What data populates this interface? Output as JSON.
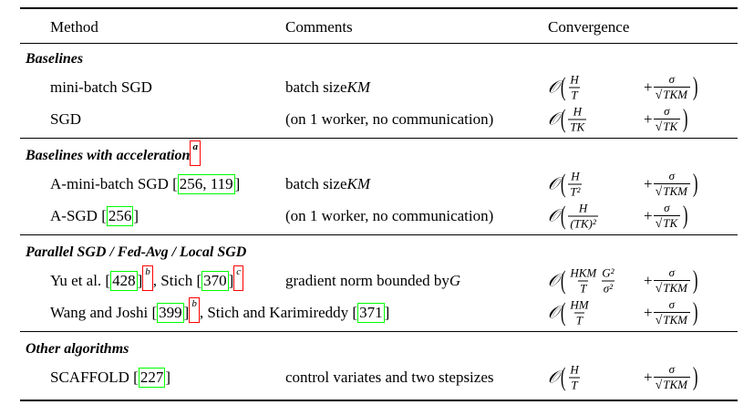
{
  "header": [
    "Method",
    "Comments",
    "Convergence"
  ],
  "symbols": {
    "O": "𝒪",
    "open": "(",
    "close": ")",
    "plus": "+",
    "root": "√"
  },
  "sections": [
    {
      "title": [
        {
          "t": "Baselines"
        }
      ],
      "rows": [
        {
          "method": [
            {
              "t": "mini-batch SGD"
            }
          ],
          "comment": [
            {
              "t": "batch size "
            },
            {
              "t": "KM",
              "math": true
            }
          ],
          "conv": {
            "fracs": [
              {
                "n": "H",
                "d": "T"
              }
            ],
            "sq": {
              "n": "σ",
              "d": "TKM"
            }
          }
        },
        {
          "method": [
            {
              "t": "SGD"
            }
          ],
          "comment": [
            {
              "t": "(on 1 worker, no communication)"
            }
          ],
          "conv": {
            "fracs": [
              {
                "n": "H",
                "d": "TK"
              }
            ],
            "sq": {
              "n": "σ",
              "d": "TK"
            }
          }
        }
      ]
    },
    {
      "title": [
        {
          "t": "Baselines with acceleration"
        },
        {
          "t": "a",
          "sup": true
        }
      ],
      "rows": [
        {
          "method": [
            {
              "t": "A-mini-batch SGD ["
            },
            {
              "t": "256, 119",
              "cite": true
            },
            {
              "t": "]"
            }
          ],
          "comment": [
            {
              "t": "batch size "
            },
            {
              "t": "KM",
              "math": true
            }
          ],
          "conv": {
            "fracs": [
              {
                "n": "H",
                "d": "T²"
              }
            ],
            "sq": {
              "n": "σ",
              "d": "TKM"
            }
          }
        },
        {
          "method": [
            {
              "t": "A-SGD ["
            },
            {
              "t": "256",
              "cite": true
            },
            {
              "t": "]"
            }
          ],
          "comment": [
            {
              "t": "(on 1 worker, no communication)"
            }
          ],
          "conv": {
            "fracs": [
              {
                "n": "H",
                "d": "(TK)²"
              }
            ],
            "sq": {
              "n": "σ",
              "d": "TK"
            }
          }
        }
      ]
    },
    {
      "title": [
        {
          "t": "Parallel SGD / Fed-Avg / Local SGD"
        }
      ],
      "rows": [
        {
          "method": [
            {
              "t": "Yu et al. ["
            },
            {
              "t": "428",
              "cite": true
            },
            {
              "t": "]"
            },
            {
              "t": "b",
              "sup": true
            },
            {
              "t": ", Stich ["
            },
            {
              "t": "370",
              "cite": true
            },
            {
              "t": "]"
            },
            {
              "t": "c",
              "sup": true
            }
          ],
          "comment": [
            {
              "t": "gradient norm bounded by "
            },
            {
              "t": "G",
              "math": true
            }
          ],
          "conv": {
            "fracs": [
              {
                "n": "HKM",
                "d": "T"
              },
              {
                "n": "G²",
                "d": "σ²"
              }
            ],
            "sq": {
              "n": "σ",
              "d": "TKM"
            }
          }
        },
        {
          "method": [
            {
              "t": "Wang and Joshi ["
            },
            {
              "t": "399",
              "cite": true
            },
            {
              "t": "]"
            },
            {
              "t": "b",
              "sup": true
            },
            {
              "t": ", Stich and Karimireddy ["
            },
            {
              "t": "371",
              "cite": true
            },
            {
              "t": "]"
            }
          ],
          "conv": {
            "fracs": [
              {
                "n": "HM",
                "d": "T"
              }
            ],
            "sq": {
              "n": "σ",
              "d": "TKM"
            }
          }
        }
      ]
    },
    {
      "title": [
        {
          "t": "Other algorithms"
        }
      ],
      "rows": [
        {
          "method": [
            {
              "t": "SCAFFOLD ["
            },
            {
              "t": "227",
              "cite": true
            },
            {
              "t": "]"
            }
          ],
          "comment": [
            {
              "t": "control variates and two stepsizes"
            }
          ],
          "conv": {
            "fracs": [
              {
                "n": "H",
                "d": "T"
              }
            ],
            "sq": {
              "n": "σ",
              "d": "TKM"
            }
          }
        }
      ]
    }
  ]
}
